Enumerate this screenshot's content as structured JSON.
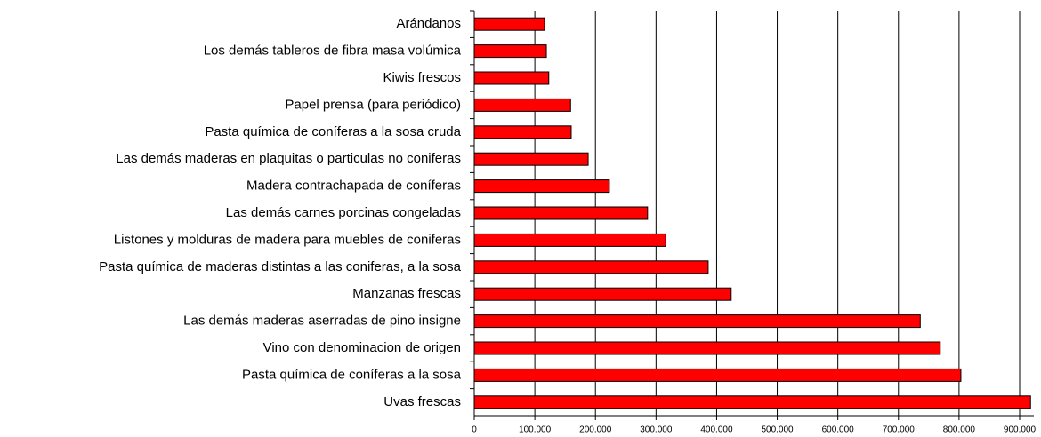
{
  "chart_data": {
    "type": "bar",
    "orientation": "horizontal",
    "categories": [
      "Arándanos",
      "Los demás tableros de fibra masa volúmica",
      "Kiwis frescos",
      "Papel prensa (para periódico)",
      "Pasta química de coníferas a la sosa cruda",
      "Las demás maderas en plaquitas o particulas no coniferas",
      "Madera contrachapada  de coníferas",
      "Las demás carnes porcinas congeladas",
      "Listones y molduras de madera para muebles de coniferas",
      "Pasta química de maderas distintas a las coniferas, a la sosa",
      "Manzanas frescas",
      "Las demás maderas aserradas de pino insigne",
      "Vino con denominacion de origen",
      "Pasta química de coníferas a la sosa",
      "Uvas frescas"
    ],
    "values": [
      116000,
      119000,
      123000,
      159000,
      160000,
      188000,
      223000,
      286000,
      316000,
      386000,
      424000,
      736000,
      769000,
      803000,
      918000
    ],
    "color": "#ff0000",
    "xlim": [
      0,
      900000
    ],
    "xticks": [
      0,
      {
        "value": 100000,
        "label": "100.000"
      },
      {
        "value": 200000,
        "label": "200.000"
      },
      {
        "value": 300000,
        "label": "300.000"
      },
      {
        "value": 400000,
        "label": "400.000"
      },
      {
        "value": 500000,
        "label": "500.000"
      },
      {
        "value": 600000,
        "label": "600.000"
      },
      {
        "value": 700000,
        "label": "700.000"
      },
      {
        "value": 800000,
        "label": "800.000"
      },
      {
        "value": 900000,
        "label": "900.000"
      }
    ],
    "grid": true
  }
}
